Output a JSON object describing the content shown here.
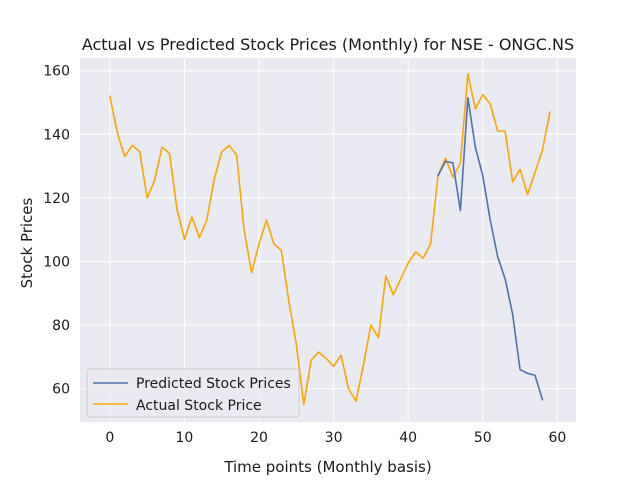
{
  "chart_data": {
    "type": "line",
    "title": "Actual vs Predicted Stock Prices (Monthly) for NSE - ONGC.NS",
    "xlabel": "Time points (Monthly basis)",
    "ylabel": "Stock Prices",
    "xlim": [
      -4,
      62.5
    ],
    "ylim": [
      49.5,
      164
    ],
    "x_ticks": [
      0,
      10,
      20,
      30,
      40,
      50,
      60
    ],
    "y_ticks": [
      60,
      80,
      100,
      120,
      140,
      160
    ],
    "x_tick_labels": [
      "0",
      "10",
      "20",
      "30",
      "40",
      "50",
      "60"
    ],
    "y_tick_labels": [
      "60",
      "80",
      "100",
      "120",
      "140",
      "160"
    ],
    "grid": true,
    "legend_position": "lower-left",
    "background": "#eaeaf2",
    "series": [
      {
        "name": "Predicted Stock Prices",
        "color": "#4c72b0",
        "x": [
          44,
          45,
          46,
          47,
          48,
          49,
          50,
          51,
          52,
          53,
          54,
          55,
          56,
          57,
          58
        ],
        "y": [
          127,
          131.5,
          131,
          116,
          151.5,
          136,
          127,
          113,
          101.5,
          94.5,
          83.5,
          66,
          64.8,
          64.2,
          56.5
        ]
      },
      {
        "name": "Actual Stock Price",
        "color": "#ffa500",
        "x": [
          0,
          1,
          2,
          3,
          4,
          5,
          6,
          7,
          8,
          9,
          10,
          11,
          12,
          13,
          14,
          15,
          16,
          17,
          18,
          19,
          20,
          21,
          22,
          23,
          24,
          25,
          26,
          27,
          28,
          29,
          30,
          31,
          32,
          33,
          34,
          35,
          36,
          37,
          38,
          39,
          40,
          41,
          42,
          43,
          44,
          45,
          46,
          47,
          48,
          49,
          50,
          51,
          52,
          53,
          54,
          55,
          56,
          57,
          58,
          59
        ],
        "y": [
          152,
          140.5,
          133,
          136.5,
          134.5,
          120,
          125.5,
          136,
          134,
          116.5,
          107,
          114,
          107.5,
          113,
          126,
          134.5,
          136.5,
          133.5,
          110,
          96.5,
          105.5,
          113,
          105.5,
          103.5,
          87.5,
          74,
          55,
          69,
          71.5,
          69.5,
          67,
          70.5,
          60,
          56,
          67.5,
          80,
          76,
          95.5,
          89.5,
          94.5,
          99.5,
          103,
          101,
          105.5,
          127,
          132.5,
          126.5,
          131,
          159,
          148,
          152.5,
          149.5,
          141,
          141,
          125,
          129,
          121,
          128,
          135,
          147
        ]
      }
    ]
  }
}
